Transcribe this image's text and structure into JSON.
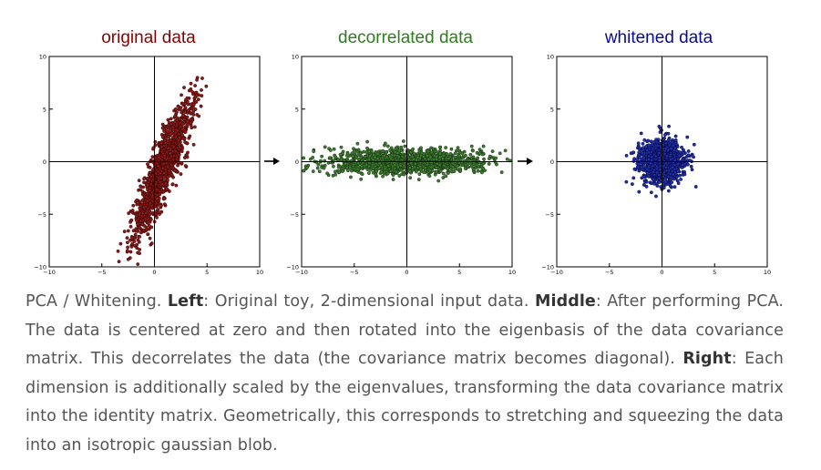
{
  "chart_data": [
    {
      "type": "scatter",
      "title": "original data",
      "title_color": "#8b0000",
      "point_color": "#8b1a1a",
      "point_stroke": "#2a0000",
      "xlim": [
        -10,
        10
      ],
      "ylim": [
        -10,
        10
      ],
      "xticks": [
        "−10",
        "−5",
        "0",
        "5",
        "10"
      ],
      "yticks": [
        "10",
        "5",
        "0",
        "−5",
        "−10"
      ],
      "grid": false,
      "zero_axes": true,
      "distribution": {
        "shape": "correlated gaussian",
        "mean": [
          0.8,
          -0.6
        ],
        "std_major": 3.6,
        "std_minor": 0.6,
        "angle_deg": 68,
        "n_points": 1300
      }
    },
    {
      "type": "scatter",
      "title": "decorrelated data",
      "title_color": "#2e7d1f",
      "point_color": "#3f7a32",
      "point_stroke": "#0f2a08",
      "xlim": [
        -10,
        10
      ],
      "ylim": [
        -10,
        10
      ],
      "xticks": [
        "−10",
        "−5",
        "0",
        "5",
        "10"
      ],
      "yticks": [
        "10",
        "5",
        "0",
        "−5",
        "−10"
      ],
      "grid": false,
      "zero_axes": true,
      "distribution": {
        "shape": "axis-aligned gaussian",
        "mean": [
          0,
          0
        ],
        "std_x": 3.6,
        "std_y": 0.6,
        "n_points": 1300
      }
    },
    {
      "type": "scatter",
      "title": "whitened data",
      "title_color": "#0a0a9a",
      "point_color": "#2030a0",
      "point_stroke": "#000040",
      "xlim": [
        -10,
        10
      ],
      "ylim": [
        -10,
        10
      ],
      "xticks": [
        "−10",
        "−5",
        "0",
        "5",
        "10"
      ],
      "yticks": [
        "10",
        "5",
        "0",
        "−5",
        "−10"
      ],
      "grid": false,
      "zero_axes": true,
      "distribution": {
        "shape": "isotropic gaussian",
        "mean": [
          0,
          0
        ],
        "std_x": 1.0,
        "std_y": 1.0,
        "n_points": 1300
      }
    }
  ],
  "arrows": [
    "right-arrow",
    "right-arrow"
  ],
  "caption": {
    "part1": "PCA / Whitening. ",
    "left_label": "Left",
    "part2": ": Original toy, 2-dimensional input data. ",
    "middle_label": "Middle",
    "part3": ": After performing PCA. The data is centered at zero and then rotated into the eigenbasis of the data covariance matrix. This decorrelates the data (the covariance matrix becomes diagonal). ",
    "right_label": "Right",
    "part4": ": Each dimension is additionally scaled by the eigenvalues, transforming the data covariance matrix into the identity matrix. Geometrically, this corresponds to stretching and squeezing the data into an isotropic gaussian blob."
  }
}
